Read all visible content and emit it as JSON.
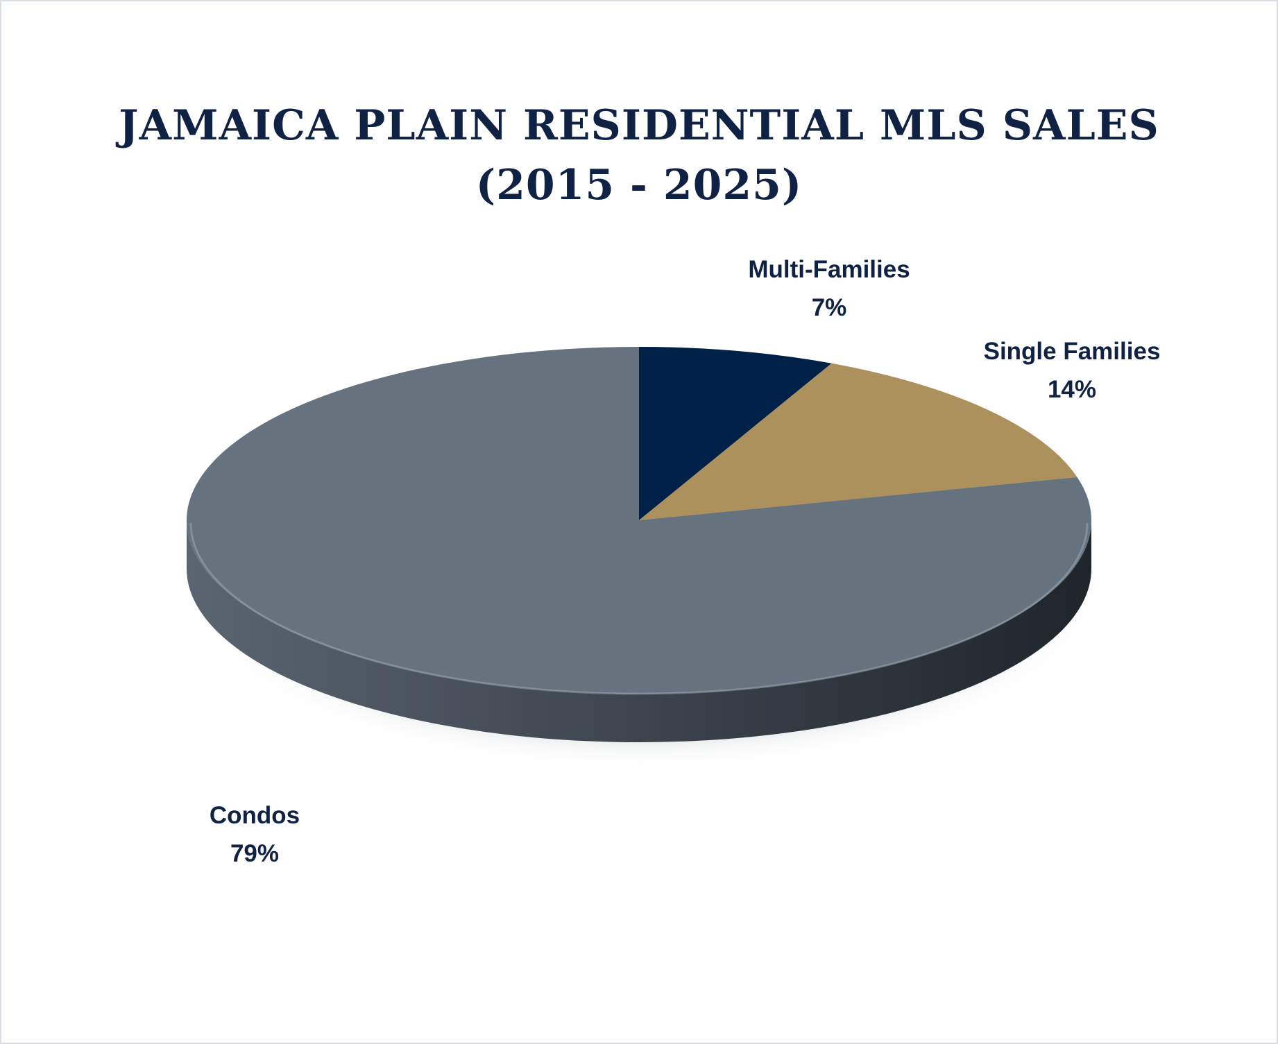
{
  "chart_data": {
    "type": "pie",
    "title_line1": "JAMAICA PLAIN RESIDENTIAL MLS SALES",
    "title_line2": "(2015 - 2025)",
    "slices": [
      {
        "name": "Multi-Families",
        "value": 7,
        "label": "7%",
        "color": "#002147"
      },
      {
        "name": "Single Families",
        "value": 14,
        "label": "14%",
        "color": "#ac915c"
      },
      {
        "name": "Condos",
        "value": 79,
        "label": "79%",
        "color": "#66727d"
      }
    ],
    "start_angle_deg": 0,
    "direction": "clockwise",
    "style": "3d"
  }
}
